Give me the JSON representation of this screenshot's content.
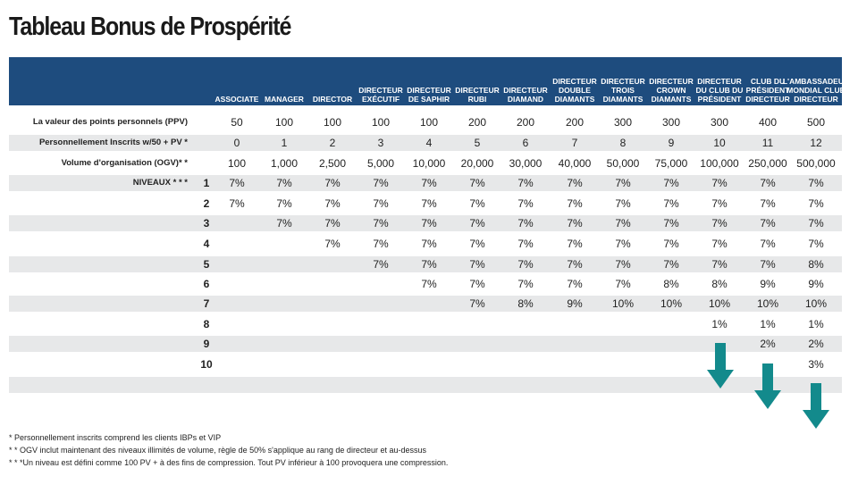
{
  "title": "Tableau Bonus de Prospérité",
  "columns": [
    "ASSOCIATE",
    "MANAGER",
    "DIRECTOR",
    "DIRECTEUR EXÉCUTIF",
    "DIRECTEUR DE SAPHIR",
    "DIRECTEUR RUBI",
    "DIRECTEUR DIAMAND",
    "DIRECTEUR DOUBLE DIAMANTS",
    "DIRECTEUR TROIS DIAMANTS",
    "DIRECTEUR CROWN DIAMANTS",
    "DIRECTEUR DU CLUB DU PRÉSIDENT",
    "CLUB DU PRÉSIDENT DIRECTEUR",
    "L'AMBASSADEUR MONDIAL CLUB DIRECTEUR"
  ],
  "rows": [
    {
      "label": "La valeur des points personnels (PPV)",
      "values": [
        "50",
        "100",
        "100",
        "100",
        "100",
        "200",
        "200",
        "200",
        "300",
        "300",
        "300",
        "400",
        "500"
      ]
    },
    {
      "label": "Personnellement Inscrits w/50 + PV *",
      "values": [
        "0",
        "1",
        "2",
        "3",
        "4",
        "5",
        "6",
        "7",
        "8",
        "9",
        "10",
        "11",
        "12"
      ]
    },
    {
      "label": "Volume d'organisation (OGV)* *",
      "values": [
        "100",
        "1,000",
        "2,500",
        "5,000",
        "10,000",
        "20,000",
        "30,000",
        "40,000",
        "50,000",
        "75,000",
        "100,000",
        "250,000",
        "500,000"
      ]
    }
  ],
  "levels_label": "NIVEAUX * * *",
  "levels": [
    {
      "level": "1",
      "values": [
        "7%",
        "7%",
        "7%",
        "7%",
        "7%",
        "7%",
        "7%",
        "7%",
        "7%",
        "7%",
        "7%",
        "7%",
        "7%"
      ]
    },
    {
      "level": "2",
      "values": [
        "7%",
        "7%",
        "7%",
        "7%",
        "7%",
        "7%",
        "7%",
        "7%",
        "7%",
        "7%",
        "7%",
        "7%",
        "7%"
      ]
    },
    {
      "level": "3",
      "values": [
        "",
        "7%",
        "7%",
        "7%",
        "7%",
        "7%",
        "7%",
        "7%",
        "7%",
        "7%",
        "7%",
        "7%",
        "7%"
      ]
    },
    {
      "level": "4",
      "values": [
        "",
        "",
        "7%",
        "7%",
        "7%",
        "7%",
        "7%",
        "7%",
        "7%",
        "7%",
        "7%",
        "7%",
        "7%"
      ]
    },
    {
      "level": "5",
      "values": [
        "",
        "",
        "",
        "7%",
        "7%",
        "7%",
        "7%",
        "7%",
        "7%",
        "7%",
        "7%",
        "7%",
        "8%"
      ]
    },
    {
      "level": "6",
      "values": [
        "",
        "",
        "",
        "",
        "7%",
        "7%",
        "7%",
        "7%",
        "7%",
        "8%",
        "8%",
        "9%",
        "9%"
      ]
    },
    {
      "level": "7",
      "values": [
        "",
        "",
        "",
        "",
        "",
        "7%",
        "8%",
        "9%",
        "10%",
        "10%",
        "10%",
        "10%",
        "10%"
      ]
    },
    {
      "level": "8",
      "values": [
        "",
        "",
        "",
        "",
        "",
        "",
        "",
        "",
        "",
        "",
        "1%",
        "1%",
        "1%"
      ]
    },
    {
      "level": "9",
      "values": [
        "",
        "",
        "",
        "",
        "",
        "",
        "",
        "",
        "",
        "",
        "",
        "2%",
        "2%"
      ]
    },
    {
      "level": "10",
      "values": [
        "",
        "",
        "",
        "",
        "",
        "",
        "",
        "",
        "",
        "",
        "",
        "",
        "3%"
      ]
    }
  ],
  "notes": [
    "* Personnellement inscrits comprend les clients IBPs et VIP",
    "* * OGV inclut maintenant des niveaux illimités de volume, règle de 50% s'applique au rang de directeur et au-dessus",
    "* * *Un niveau est défini comme 100 PV + à des fins de compression. Tout PV inférieur à 100 provoquera une compression."
  ],
  "colors": {
    "header": "#1e4c7e",
    "shade": "#e7e8e9",
    "arrow": "#138a8c"
  },
  "icons": [
    "down-arrow-icon",
    "down-arrow-icon",
    "down-arrow-icon"
  ]
}
